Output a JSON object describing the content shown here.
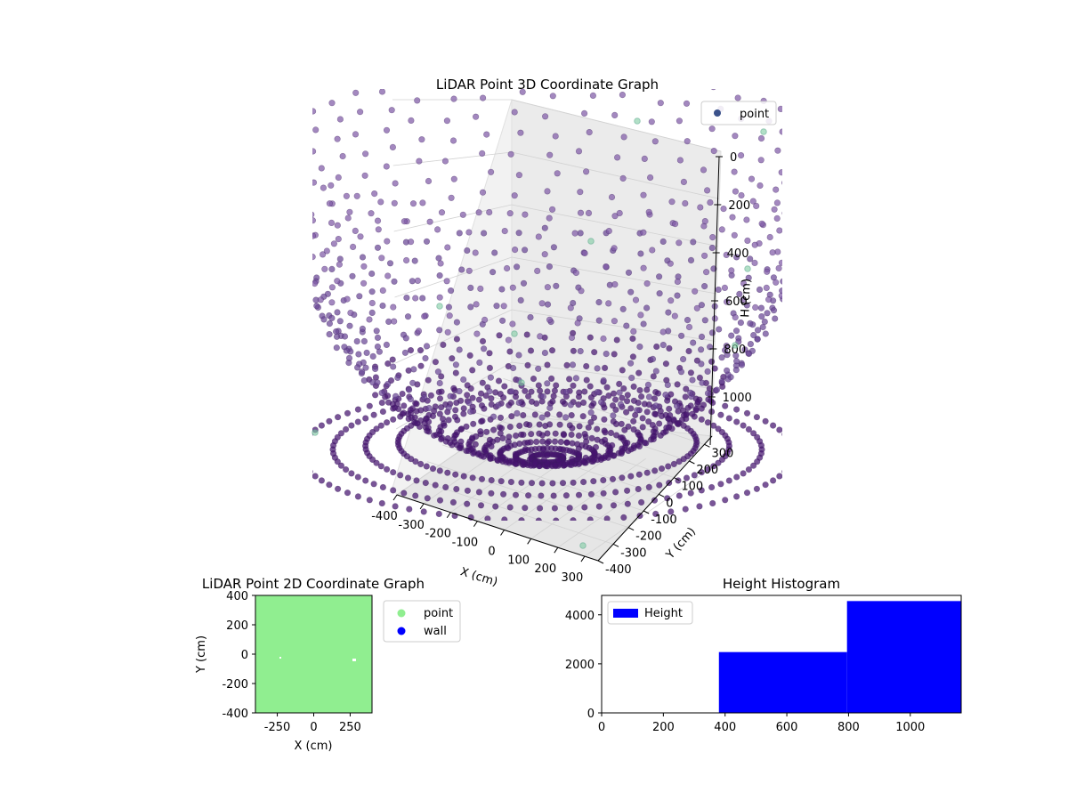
{
  "chart_data": [
    {
      "type": "scatter",
      "projection": "3d",
      "title": "LiDAR Point 3D Coordinate Graph",
      "xlabel": "X (cm)",
      "ylabel": "Y (cm)",
      "zlabel": "H (cm)",
      "x_ticks": [
        -400,
        -300,
        -200,
        -100,
        0,
        100,
        200,
        300
      ],
      "y_ticks": [
        -400,
        -300,
        -200,
        -100,
        0,
        100,
        200,
        300
      ],
      "z_ticks": [
        0,
        200,
        400,
        600,
        800,
        1000
      ],
      "xlim": [
        -400,
        350
      ],
      "ylim": [
        -400,
        350
      ],
      "zlim": [
        0,
        1200
      ],
      "z_inverted": true,
      "legend": {
        "entries": [
          "point"
        ],
        "placement": "top-right"
      },
      "colormap": "viridis",
      "point_color": "#6b4c9a",
      "grid": true,
      "description_shape": "hemispherical dome of points formed by radial scan lines converging at the bottom center"
    },
    {
      "type": "scatter",
      "title": "LiDAR Point 2D Coordinate Graph",
      "xlabel": "X (cm)",
      "ylabel": "Y (cm)",
      "x_ticks": [
        -250,
        0,
        250
      ],
      "y_ticks": [
        -400,
        -200,
        0,
        200,
        400
      ],
      "xlim": [
        -400,
        400
      ],
      "ylim": [
        -400,
        400
      ],
      "series": [
        {
          "name": "point",
          "color": "#90ee90"
        },
        {
          "name": "wall",
          "color": "#0000ff"
        }
      ],
      "legend": {
        "placement": "outside-right"
      }
    },
    {
      "type": "bar",
      "histogram": true,
      "title": "Height Histogram",
      "bins": [
        {
          "start": 0,
          "end": 380,
          "count": 0
        },
        {
          "start": 380,
          "end": 795,
          "count": 2480
        },
        {
          "start": 795,
          "end": 1165,
          "count": 4560
        }
      ],
      "x_ticks": [
        0,
        200,
        400,
        600,
        800,
        1000
      ],
      "y_ticks": [
        0,
        2000,
        4000
      ],
      "xlim": [
        0,
        1165
      ],
      "ylim": [
        0,
        4790
      ],
      "series": [
        {
          "name": "Height",
          "color": "#0000ff"
        }
      ],
      "legend": {
        "placement": "top-left"
      }
    }
  ]
}
